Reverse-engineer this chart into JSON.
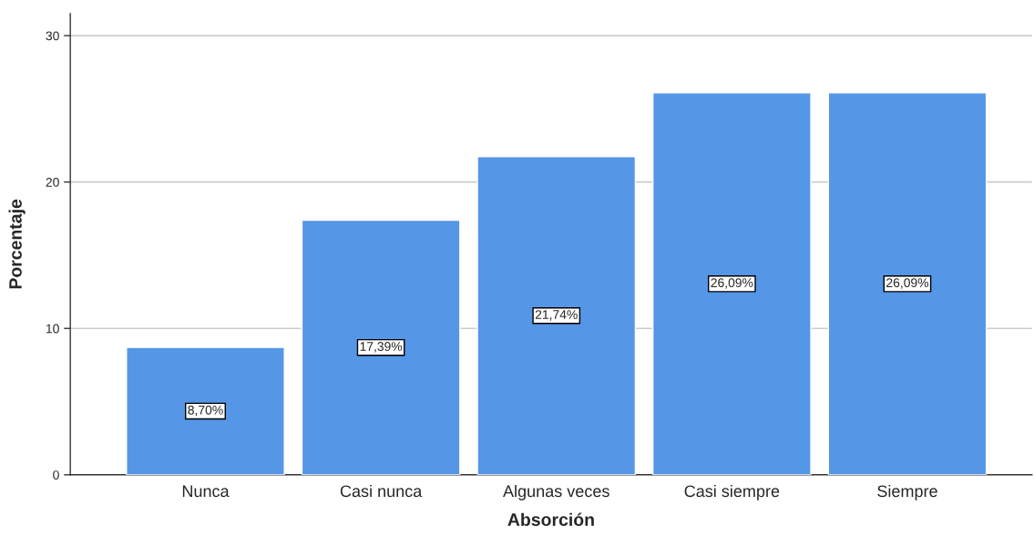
{
  "chart_data": {
    "type": "bar",
    "xlabel": "Absorción",
    "ylabel": "Porcentaje",
    "categories": [
      "Nunca",
      "Casi nunca",
      "Algunas veces",
      "Casi siempre",
      "Siempre"
    ],
    "values": [
      8.7,
      17.39,
      21.74,
      26.09,
      26.09
    ],
    "value_labels": [
      "8,70%",
      "17,39%",
      "21,74%",
      "26,09%",
      "26,09%"
    ],
    "color": "#5596e6",
    "ylim": [
      0,
      31.5
    ],
    "yticks": [
      0,
      10,
      20,
      30
    ],
    "grid": "y"
  }
}
